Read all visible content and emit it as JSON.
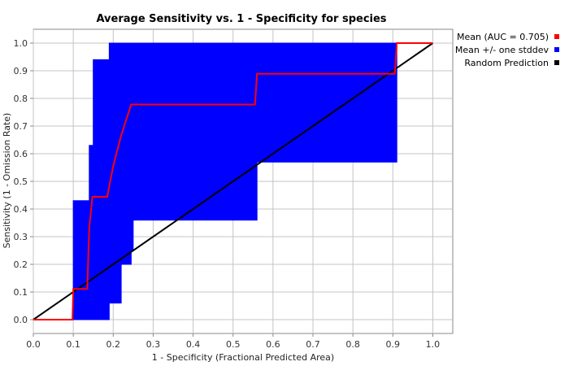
{
  "chart_data": {
    "type": "line",
    "title": "Average Sensitivity vs. 1 - Specificity for species",
    "xlabel": "1 - Specificity (Fractional Predicted Area)",
    "ylabel": "Sensitivity (1 - Omission Rate)",
    "xlim": [
      0,
      1.05
    ],
    "ylim": [
      -0.05,
      1.05
    ],
    "xticks": [
      "0.0",
      "0.1",
      "0.2",
      "0.3",
      "0.4",
      "0.5",
      "0.6",
      "0.7",
      "0.8",
      "0.9",
      "1.0"
    ],
    "yticks": [
      "0.0",
      "0.1",
      "0.2",
      "0.3",
      "0.4",
      "0.5",
      "0.6",
      "0.7",
      "0.8",
      "0.9",
      "1.0"
    ],
    "grid": true,
    "legend_position": "right",
    "series": [
      {
        "name": "Mean (AUC = 0.705)",
        "color": "#ff0000",
        "x": [
          0.0,
          0.098,
          0.1,
          0.135,
          0.14,
          0.148,
          0.185,
          0.2,
          0.22,
          0.245,
          0.555,
          0.56,
          0.905,
          0.91,
          1.0
        ],
        "y": [
          0.0,
          0.0,
          0.111,
          0.111,
          0.333,
          0.444,
          0.444,
          0.556,
          0.667,
          0.778,
          0.778,
          0.889,
          0.889,
          1.0,
          1.0
        ]
      },
      {
        "name": "Mean +/- one stddev",
        "color": "#0000ff",
        "band": {
          "x": [
            0.1,
            0.14,
            0.15,
            0.19,
            0.2,
            0.22,
            0.245,
            0.25,
            0.555,
            0.56,
            0.9,
            0.905,
            0.91
          ],
          "upper": [
            0.43,
            0.63,
            0.94,
            1.0,
            1.0,
            1.0,
            1.0,
            1.0,
            1.0,
            1.0,
            1.0,
            1.0,
            1.0
          ],
          "lower": [
            0.0,
            0.0,
            0.0,
            0.06,
            0.06,
            0.2,
            0.25,
            0.36,
            0.36,
            0.57,
            0.57,
            0.57,
            0.57
          ]
        }
      },
      {
        "name": "Random Prediction",
        "color": "#000000",
        "x": [
          0.0,
          1.0
        ],
        "y": [
          0.0,
          1.0
        ]
      }
    ]
  }
}
